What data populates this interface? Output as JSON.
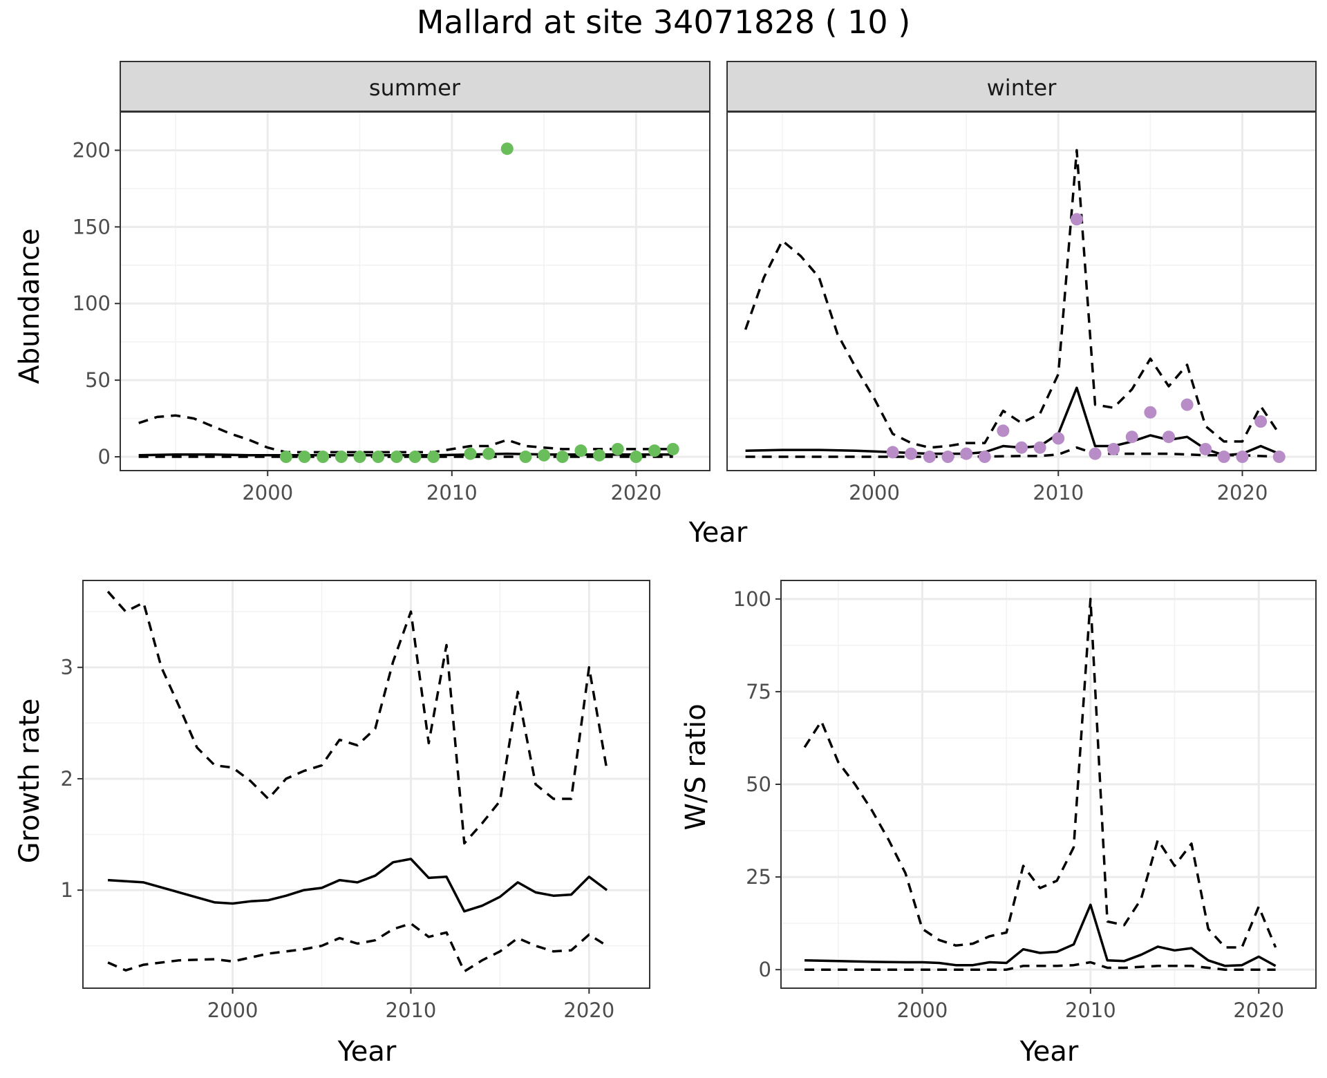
{
  "title": "Mallard at site 34071828 ( 10 )",
  "colors": {
    "summer_points": "#6ABD5B",
    "winter_points": "#B88CC6",
    "lines": "#000000"
  },
  "chart_data": [
    {
      "id": "abundance",
      "type": "line",
      "ylabel": "Abundance",
      "xlabel": "Year",
      "xlim": [
        1992,
        2024
      ],
      "ylim": [
        -9,
        225
      ],
      "xticks": [
        2000,
        2010,
        2020
      ],
      "yticks": [
        0,
        50,
        100,
        150,
        200
      ],
      "facets": [
        {
          "strip": "summer",
          "mean": {
            "x": [
              1993,
              1995,
              1997,
              1999,
              2001,
              2003,
              2005,
              2007,
              2009,
              2011,
              2013,
              2015,
              2017,
              2019,
              2021,
              2022
            ],
            "y": [
              1,
              1.5,
              1.5,
              1,
              1,
              1,
              1,
              1,
              1,
              1.5,
              2,
              1.5,
              1.5,
              1.5,
              1.5,
              1.5
            ]
          },
          "upper": {
            "x": [
              1993,
              1994,
              1995,
              1996,
              1998,
              1999,
              2000,
              2001,
              2003,
              2005,
              2007,
              2009,
              2010,
              2011,
              2012,
              2013,
              2014,
              2015,
              2016,
              2017,
              2018,
              2019,
              2020,
              2021,
              2022
            ],
            "y": [
              22,
              26,
              27,
              25,
              15,
              11,
              6,
              3,
              3,
              3,
              3,
              3,
              5,
              7,
              7,
              11,
              7,
              6,
              5,
              5,
              5,
              5,
              5,
              5,
              5
            ]
          },
          "lower": {
            "x": [
              1993,
              2000,
              2005,
              2010,
              2015,
              2020,
              2022
            ],
            "y": [
              0,
              0,
              0,
              0,
              0,
              0,
              0
            ]
          },
          "points": {
            "x": [
              2001,
              2002,
              2003,
              2004,
              2005,
              2006,
              2007,
              2008,
              2009,
              2011,
              2012,
              2013,
              2014,
              2015,
              2016,
              2017,
              2018,
              2019,
              2020,
              2021,
              2022
            ],
            "y": [
              0,
              0,
              0,
              0,
              0,
              0,
              0,
              0,
              0,
              2,
              2,
              201,
              0,
              1,
              0,
              4,
              1,
              5,
              0,
              4,
              5
            ]
          }
        },
        {
          "strip": "winter",
          "mean": {
            "x": [
              1993,
              1995,
              1997,
              1999,
              2001,
              2003,
              2005,
              2006,
              2007,
              2008,
              2009,
              2010,
              2011,
              2012,
              2013,
              2014,
              2015,
              2016,
              2017,
              2018,
              2019,
              2020,
              2021,
              2022
            ],
            "y": [
              4,
              4.5,
              4.5,
              4,
              3,
              2,
              2,
              3,
              7,
              6,
              7,
              15,
              45,
              7,
              7,
              10,
              14,
              11,
              13,
              5,
              1,
              2,
              7,
              2
            ]
          },
          "upper": {
            "x": [
              1993,
              1994,
              1995,
              1996,
              1997,
              1998,
              1999,
              2000,
              2001,
              2002,
              2003,
              2004,
              2005,
              2006,
              2007,
              2008,
              2009,
              2010,
              2011,
              2012,
              2013,
              2014,
              2015,
              2016,
              2017,
              2018,
              2019,
              2020,
              2021,
              2022
            ],
            "y": [
              83,
              117,
              141,
              131,
              117,
              80,
              58,
              38,
              15,
              9,
              6,
              7,
              9,
              9,
              30,
              22,
              28,
              54,
              200,
              34,
              32,
              44,
              64,
              46,
              60,
              20,
              10,
              10,
              33,
              15
            ]
          },
          "lower": {
            "x": [
              1993,
              2000,
              2005,
              2008,
              2009,
              2010,
              2011,
              2012,
              2014,
              2016,
              2018,
              2020,
              2022
            ],
            "y": [
              0,
              0,
              0,
              0.5,
              0.5,
              1.5,
              6,
              2,
              2,
              2,
              1,
              1,
              0
            ]
          },
          "points": {
            "x": [
              2001,
              2002,
              2003,
              2004,
              2005,
              2006,
              2007,
              2008,
              2009,
              2010,
              2011,
              2012,
              2013,
              2014,
              2015,
              2016,
              2017,
              2018,
              2019,
              2020,
              2021,
              2022
            ],
            "y": [
              3,
              2,
              0,
              0,
              2,
              0,
              17,
              6,
              6,
              12,
              155,
              2,
              5,
              13,
              29,
              13,
              34,
              5,
              0,
              0,
              23,
              0
            ]
          }
        }
      ]
    },
    {
      "id": "growth",
      "type": "line",
      "ylabel": "Growth rate",
      "xlabel": "Year",
      "xlim": [
        1991.6,
        2023.4
      ],
      "ylim": [
        0.12,
        3.78
      ],
      "xticks": [
        2000,
        2010,
        2020
      ],
      "yticks": [
        1,
        2,
        3
      ],
      "mean": {
        "x": [
          1993,
          1995,
          1997,
          1999,
          2000,
          2001,
          2002,
          2003,
          2004,
          2005,
          2006,
          2007,
          2008,
          2009,
          2010,
          2011,
          2012,
          2013,
          2014,
          2015,
          2016,
          2017,
          2018,
          2019,
          2020,
          2021
        ],
        "y": [
          1.09,
          1.07,
          0.98,
          0.89,
          0.88,
          0.9,
          0.91,
          0.95,
          1.0,
          1.02,
          1.09,
          1.07,
          1.13,
          1.25,
          1.28,
          1.11,
          1.12,
          0.81,
          0.86,
          0.94,
          1.07,
          0.98,
          0.95,
          0.96,
          1.12,
          1.0
        ]
      },
      "upper": {
        "x": [
          1993,
          1994,
          1995,
          1996,
          1997,
          1998,
          1999,
          2000,
          2001,
          2002,
          2003,
          2004,
          2005,
          2006,
          2007,
          2008,
          2009,
          2010,
          2011,
          2012,
          2013,
          2014,
          2015,
          2016,
          2017,
          2018,
          2019,
          2020,
          2021
        ],
        "y": [
          3.68,
          3.5,
          3.58,
          3.0,
          2.65,
          2.28,
          2.12,
          2.1,
          1.98,
          1.82,
          2.0,
          2.07,
          2.12,
          2.35,
          2.3,
          2.45,
          3.05,
          3.5,
          2.32,
          3.2,
          1.42,
          1.6,
          1.8,
          2.78,
          1.95,
          1.82,
          1.82,
          3.0,
          2.08
        ]
      },
      "lower": {
        "x": [
          1993,
          1994,
          1995,
          1997,
          1999,
          2000,
          2002,
          2004,
          2005,
          2006,
          2007,
          2008,
          2009,
          2010,
          2011,
          2012,
          2013,
          2014,
          2015,
          2016,
          2017,
          2018,
          2019,
          2020,
          2021
        ],
        "y": [
          0.35,
          0.28,
          0.33,
          0.37,
          0.38,
          0.36,
          0.43,
          0.47,
          0.5,
          0.57,
          0.52,
          0.55,
          0.65,
          0.7,
          0.58,
          0.62,
          0.27,
          0.37,
          0.45,
          0.57,
          0.5,
          0.45,
          0.46,
          0.6,
          0.5
        ]
      }
    },
    {
      "id": "ratio",
      "type": "line",
      "ylabel": "W/S ratio",
      "xlabel": "Year",
      "xlim": [
        1991.6,
        2023.4
      ],
      "ylim": [
        -5,
        105
      ],
      "xticks": [
        2000,
        2010,
        2020
      ],
      "yticks": [
        0,
        25,
        50,
        75,
        100
      ],
      "mean": {
        "x": [
          1993,
          1995,
          1997,
          1999,
          2000,
          2001,
          2002,
          2003,
          2004,
          2005,
          2006,
          2007,
          2008,
          2009,
          2010,
          2011,
          2012,
          2013,
          2014,
          2015,
          2016,
          2017,
          2018,
          2019,
          2020,
          2021
        ],
        "y": [
          2.5,
          2.3,
          2.1,
          2.0,
          2.0,
          1.8,
          1.2,
          1.2,
          2.0,
          1.8,
          5.5,
          4.5,
          4.8,
          6.8,
          17.5,
          2.5,
          2.3,
          4.0,
          6.2,
          5.2,
          5.8,
          2.5,
          1.0,
          1.2,
          3.5,
          1.0
        ]
      },
      "upper": {
        "x": [
          1993,
          1994,
          1995,
          1996,
          1997,
          1998,
          1999,
          2000,
          2001,
          2002,
          2003,
          2004,
          2005,
          2006,
          2007,
          2008,
          2009,
          2010,
          2011,
          2012,
          2013,
          2014,
          2015,
          2016,
          2017,
          2018,
          2019,
          2020,
          2021
        ],
        "y": [
          60,
          67,
          56,
          50,
          43,
          35,
          26,
          11,
          8,
          6.5,
          7,
          9,
          10,
          28,
          22,
          24,
          33,
          100,
          13,
          12,
          19,
          35,
          28,
          34,
          11,
          6,
          6,
          17,
          6
        ]
      },
      "lower": {
        "x": [
          1993,
          2000,
          2005,
          2006,
          2008,
          2009,
          2010,
          2011,
          2012,
          2014,
          2016,
          2018,
          2020,
          2021
        ],
        "y": [
          0,
          0,
          0,
          1,
          1,
          1.2,
          2,
          0.5,
          0.5,
          1,
          1,
          0,
          0,
          0
        ]
      }
    }
  ]
}
